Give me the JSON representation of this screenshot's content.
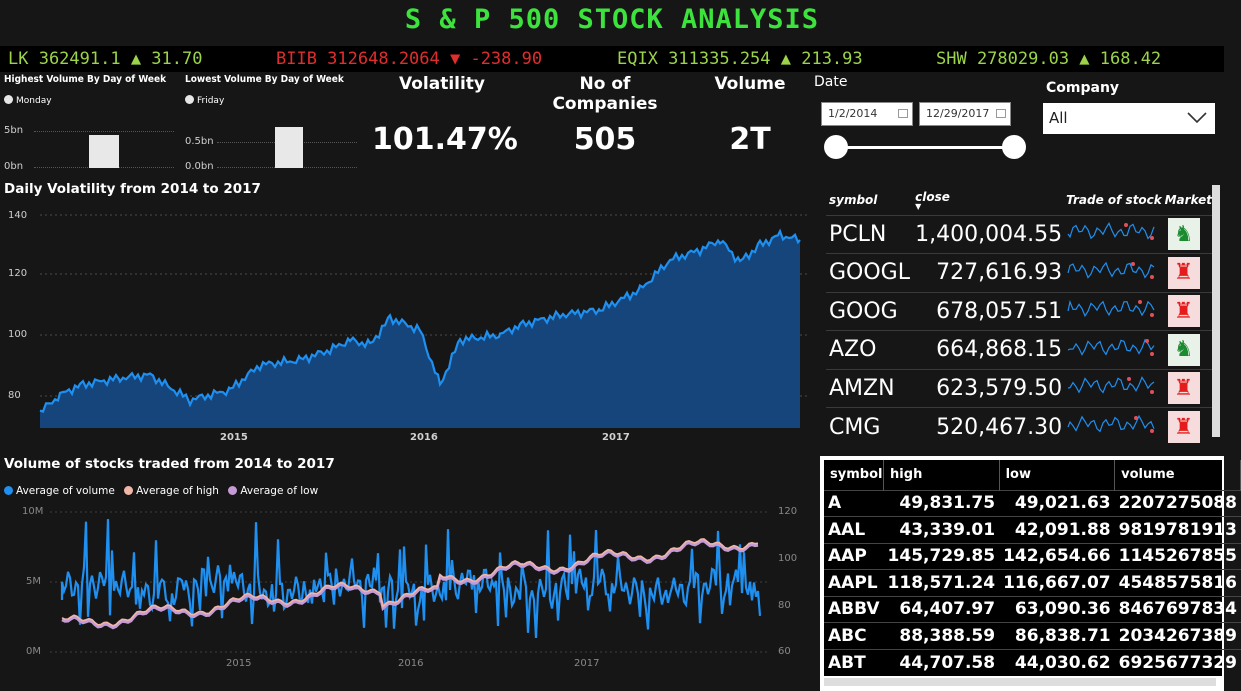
{
  "header": {
    "title": "S & P 500 STOCK ANALYSIS"
  },
  "ticker": [
    {
      "text": "LK 362491.1 ▲ 31.70",
      "color": "#9bd34a"
    },
    {
      "text": "BIIB 312648.2064 ▼ -238.90",
      "color": "#e02d2d"
    },
    {
      "text": "EQIX 311335.254 ▲ 213.93",
      "color": "#9bd34a"
    },
    {
      "text": "SHW 278029.03 ▲ 168.42",
      "color": "#9bd34a"
    }
  ],
  "highest_volume": {
    "title": "Highest Volume By Day of Week",
    "legend": "Monday",
    "yticks": [
      "5bn",
      "0bn"
    ]
  },
  "lowest_volume": {
    "title": "Lowest Volume By Day of Week",
    "legend": "Friday",
    "yticks": [
      "0.5bn",
      "0.0bn"
    ]
  },
  "kpis": [
    {
      "label": "Volatility",
      "value": "101.47%"
    },
    {
      "label": "No of Companies",
      "value": "505"
    },
    {
      "label": "Volume",
      "value": "2T"
    }
  ],
  "date_filter": {
    "label": "Date",
    "start": "1/2/2014",
    "end": "12/29/2017"
  },
  "company_filter": {
    "label": "Company",
    "value": "All"
  },
  "volatility_chart": {
    "title": "Daily Volatility from 2014 to 2017",
    "yticks": [
      "140",
      "120",
      "100",
      "80"
    ],
    "xticks": [
      "2015",
      "2016",
      "2017"
    ]
  },
  "volume_chart": {
    "title": "Volume of stocks traded from 2014 to 2017",
    "legend": [
      "Average of volume",
      "Average of high",
      "Average of low"
    ],
    "colors": {
      "volume": "#1f8ff0",
      "high": "#f0b7a8",
      "low": "#c59bd6"
    },
    "y_left": [
      "10M",
      "5M",
      "0M"
    ],
    "y_right": [
      "120",
      "100",
      "80",
      "60"
    ],
    "xticks": [
      "2015",
      "2016",
      "2017"
    ]
  },
  "close_table": {
    "headers": [
      "symbol",
      "close",
      "Trade of stock",
      "Market"
    ],
    "rows": [
      {
        "symbol": "PCLN",
        "close": "1,400,004.55",
        "market": "bull"
      },
      {
        "symbol": "GOOGL",
        "close": "727,616.93",
        "market": "bear"
      },
      {
        "symbol": "GOOG",
        "close": "678,057.51",
        "market": "bear"
      },
      {
        "symbol": "AZO",
        "close": "664,868.15",
        "market": "bull"
      },
      {
        "symbol": "AMZN",
        "close": "623,579.50",
        "market": "bear"
      },
      {
        "symbol": "CMG",
        "close": "520,467.30",
        "market": "bear"
      }
    ]
  },
  "detail_table": {
    "headers": [
      "symbol",
      "high",
      "low",
      "volume"
    ],
    "rows": [
      {
        "symbol": "A",
        "high": "49,831.75",
        "low": "49,021.63",
        "volume": "2207275088"
      },
      {
        "symbol": "AAL",
        "high": "43,339.01",
        "low": "42,091.88",
        "volume": "9819781913"
      },
      {
        "symbol": "AAP",
        "high": "145,729.85",
        "low": "142,654.66",
        "volume": "1145267855"
      },
      {
        "symbol": "AAPL",
        "high": "118,571.24",
        "low": "116,667.07",
        "volume": "4548575816"
      },
      {
        "symbol": "ABBV",
        "high": "64,407.97",
        "low": "63,090.36",
        "volume": "8467697834"
      },
      {
        "symbol": "ABC",
        "high": "88,388.59",
        "low": "86,838.71",
        "volume": "2034267389"
      },
      {
        "symbol": "ABT",
        "high": "44,707.58",
        "low": "44,030.62",
        "volume": "6925677329"
      }
    ]
  }
}
